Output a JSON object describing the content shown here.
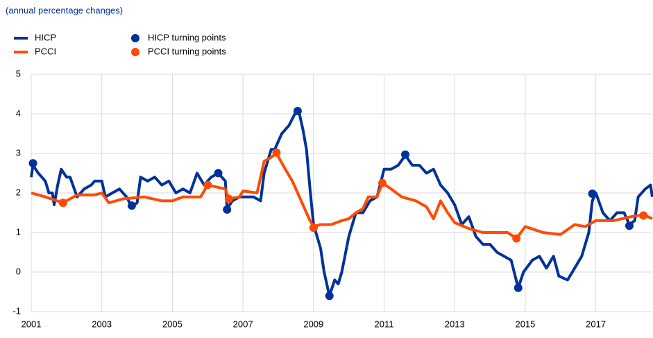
{
  "chart_data": {
    "type": "line",
    "subtitle": "(annual percentage changes)",
    "xlim": [
      2001,
      2018.6
    ],
    "xticks": [
      2001,
      2003,
      2005,
      2007,
      2009,
      2011,
      2013,
      2015,
      2017
    ],
    "ylim": [
      -1,
      5
    ],
    "yticks": [
      -1,
      0,
      1,
      2,
      3,
      4,
      5
    ],
    "grid": true,
    "series": [
      {
        "name": "HICP",
        "color": "#003299",
        "mode": "line",
        "x": [
          2001.0,
          2001.05,
          2001.2,
          2001.4,
          2001.5,
          2001.6,
          2001.65,
          2001.75,
          2001.85,
          2002.0,
          2002.1,
          2002.3,
          2002.5,
          2002.7,
          2002.8,
          2003.0,
          2003.1,
          2003.3,
          2003.5,
          2003.7,
          2003.85,
          2004.0,
          2004.1,
          2004.3,
          2004.5,
          2004.7,
          2004.9,
          2005.1,
          2005.3,
          2005.5,
          2005.7,
          2005.9,
          2006.1,
          2006.3,
          2006.5,
          2006.55,
          2006.7,
          2006.9,
          2007.1,
          2007.3,
          2007.5,
          2007.6,
          2007.8,
          2007.9,
          2008.0,
          2008.1,
          2008.3,
          2008.5,
          2008.6,
          2008.7,
          2008.8,
          2008.9,
          2009.0,
          2009.2,
          2009.3,
          2009.45,
          2009.6,
          2009.7,
          2009.8,
          2010.0,
          2010.2,
          2010.4,
          2010.6,
          2010.8,
          2011.0,
          2011.2,
          2011.4,
          2011.6,
          2011.8,
          2012.0,
          2012.2,
          2012.4,
          2012.6,
          2012.8,
          2013.0,
          2013.2,
          2013.4,
          2013.6,
          2013.8,
          2014.0,
          2014.2,
          2014.4,
          2014.6,
          2014.8,
          2014.95,
          2015.2,
          2015.4,
          2015.6,
          2015.8,
          2015.95,
          2016.2,
          2016.4,
          2016.6,
          2016.8,
          2016.9,
          2017.0,
          2017.2,
          2017.4,
          2017.6,
          2017.8,
          2017.95,
          2018.1,
          2018.2,
          2018.4,
          2018.55,
          2018.6
        ],
        "values": [
          2.4,
          2.7,
          2.5,
          2.3,
          2.0,
          2.0,
          1.7,
          2.2,
          2.6,
          2.4,
          2.4,
          1.9,
          2.1,
          2.2,
          2.3,
          2.3,
          1.9,
          2.0,
          2.1,
          1.9,
          1.65,
          1.75,
          2.4,
          2.3,
          2.4,
          2.2,
          2.3,
          2.0,
          2.1,
          2.0,
          2.5,
          2.2,
          2.4,
          2.5,
          2.3,
          1.6,
          1.8,
          1.9,
          1.9,
          1.9,
          1.8,
          2.5,
          3.1,
          3.1,
          3.3,
          3.5,
          3.7,
          4.05,
          4.0,
          3.6,
          3.1,
          2.1,
          1.2,
          0.6,
          0.0,
          -0.6,
          -0.2,
          -0.3,
          0.0,
          0.9,
          1.5,
          1.5,
          1.8,
          1.9,
          2.6,
          2.6,
          2.7,
          2.95,
          2.7,
          2.7,
          2.5,
          2.6,
          2.2,
          2.0,
          1.7,
          1.2,
          1.4,
          0.9,
          0.7,
          0.7,
          0.5,
          0.4,
          0.3,
          -0.4,
          0.0,
          0.3,
          0.4,
          0.1,
          0.4,
          -0.1,
          -0.2,
          0.1,
          0.4,
          1.0,
          1.8,
          2.0,
          1.5,
          1.3,
          1.5,
          1.5,
          1.2,
          1.3,
          1.9,
          2.1,
          2.2,
          1.9
        ]
      },
      {
        "name": "PCCI",
        "color": "#ff4b00",
        "mode": "line",
        "x": [
          2001.0,
          2001.4,
          2001.9,
          2002.3,
          2002.8,
          2003.0,
          2003.2,
          2003.6,
          2004.2,
          2004.7,
          2005.0,
          2005.3,
          2005.8,
          2006.0,
          2006.5,
          2006.6,
          2006.9,
          2007.0,
          2007.4,
          2007.6,
          2007.8,
          2007.95,
          2008.2,
          2008.4,
          2008.6,
          2008.9,
          2009.0,
          2009.2,
          2009.5,
          2009.8,
          2010.0,
          2010.2,
          2010.4,
          2010.55,
          2010.8,
          2010.95,
          2011.2,
          2011.5,
          2011.9,
          2012.2,
          2012.4,
          2012.6,
          2012.8,
          2013.0,
          2013.4,
          2013.8,
          2014.2,
          2014.5,
          2014.75,
          2015.0,
          2015.5,
          2016.0,
          2016.4,
          2016.7,
          2017.0,
          2017.5,
          2018.0,
          2018.35,
          2018.6
        ],
        "values": [
          2.0,
          1.9,
          1.75,
          1.95,
          1.95,
          2.0,
          1.75,
          1.85,
          1.9,
          1.8,
          1.8,
          1.9,
          1.9,
          2.2,
          2.1,
          1.85,
          1.9,
          2.05,
          2.0,
          2.8,
          2.9,
          3.0,
          2.6,
          2.3,
          1.9,
          1.3,
          1.15,
          1.2,
          1.2,
          1.3,
          1.35,
          1.5,
          1.6,
          1.9,
          1.9,
          2.25,
          2.1,
          1.9,
          1.8,
          1.65,
          1.35,
          1.8,
          1.5,
          1.25,
          1.1,
          1.0,
          1.0,
          1.0,
          0.85,
          1.15,
          1.0,
          0.95,
          1.2,
          1.15,
          1.3,
          1.3,
          1.4,
          1.45,
          1.35
        ]
      },
      {
        "name": "HICP turning points",
        "color": "#003299",
        "mode": "markers",
        "x": [
          2001.05,
          2003.85,
          2006.3,
          2006.55,
          2008.55,
          2009.45,
          2011.6,
          2014.8,
          2016.9,
          2017.95
        ],
        "values": [
          2.75,
          1.68,
          2.5,
          1.58,
          4.07,
          -0.6,
          2.97,
          -0.4,
          1.98,
          1.17
        ]
      },
      {
        "name": "PCCI turning points",
        "color": "#ff4b00",
        "mode": "markers",
        "x": [
          2001.9,
          2006.0,
          2006.6,
          2007.95,
          2009.0,
          2010.95,
          2014.75,
          2018.35
        ],
        "values": [
          1.75,
          2.2,
          1.85,
          3.02,
          1.12,
          2.25,
          0.85,
          1.43
        ]
      }
    ]
  }
}
